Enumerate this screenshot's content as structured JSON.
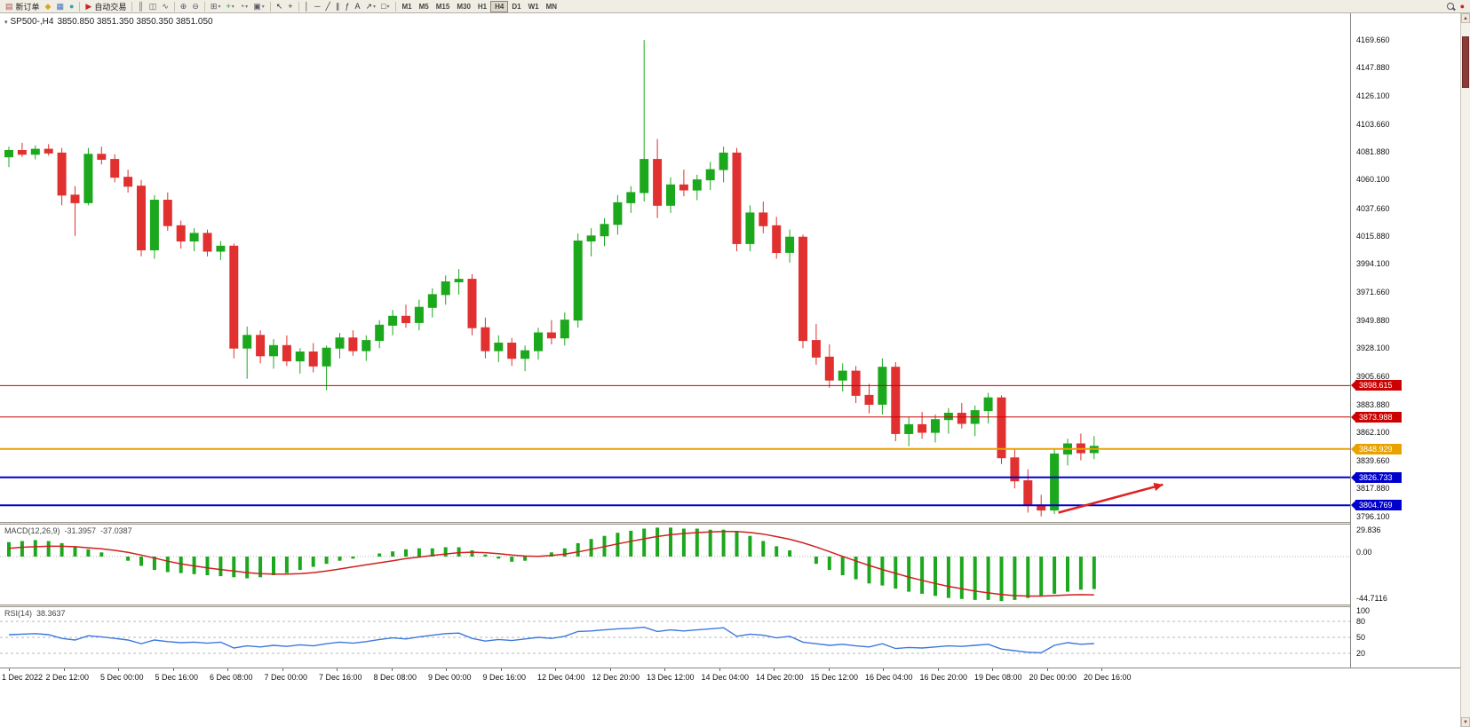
{
  "toolbar": {
    "items": [
      {
        "name": "new-order-button",
        "glyph": "▤",
        "glyph_color": "#b05050",
        "label": "新订单"
      },
      {
        "name": "metaeditor-icon",
        "glyph": "◆",
        "glyph_color": "#d9a520"
      },
      {
        "name": "chart-profiles-icon",
        "glyph": "▦",
        "glyph_color": "#4472c4"
      },
      {
        "name": "mql5-community-icon",
        "glyph": "●",
        "glyph_color": "#2aa8a8"
      },
      {
        "type": "sep"
      },
      {
        "name": "autotrading-button",
        "glyph": "▶",
        "glyph_color": "#cc2222",
        "label": "自动交易"
      },
      {
        "type": "sep"
      },
      {
        "name": "bars-chart-icon",
        "glyph": "║",
        "glyph_color": "#555566"
      },
      {
        "name": "candlestick-chart-icon",
        "glyph": "◫",
        "glyph_color": "#555566"
      },
      {
        "name": "line-chart-icon",
        "glyph": "∿",
        "glyph_color": "#555566"
      },
      {
        "type": "sep"
      },
      {
        "name": "zoom-in-icon",
        "glyph": "⊕",
        "glyph_color": "#555566"
      },
      {
        "name": "zoom-out-icon",
        "glyph": "⊖",
        "glyph_color": "#555566"
      },
      {
        "type": "sep"
      },
      {
        "name": "tile-windows-icon",
        "glyph": "⊞",
        "glyph_color": "#555566",
        "dropdown": true
      },
      {
        "name": "indicators-button",
        "glyph": "+",
        "glyph_color": "#1a9a1a",
        "dropdown": true
      },
      {
        "name": "periods-button",
        "glyph": "◔",
        "glyph_color": "#555566",
        "dropdown": true
      },
      {
        "name": "templates-button",
        "glyph": "▣",
        "glyph_color": "#555566",
        "dropdown": true
      },
      {
        "type": "sep"
      },
      {
        "name": "cursor-icon",
        "glyph": "↖",
        "glyph_color": "#333344"
      },
      {
        "name": "crosshair-icon",
        "glyph": "+",
        "glyph_color": "#333344"
      },
      {
        "type": "sep"
      },
      {
        "name": "vertical-line-icon",
        "glyph": "│",
        "glyph_color": "#333344"
      },
      {
        "name": "horizontal-line-icon",
        "glyph": "─",
        "glyph_color": "#333344"
      },
      {
        "name": "trendline-icon",
        "glyph": "╱",
        "glyph_color": "#333344"
      },
      {
        "name": "equidistant-channel-icon",
        "glyph": "∥",
        "glyph_color": "#333344"
      },
      {
        "name": "fibonacci-icon",
        "glyph": "ƒ",
        "glyph_color": "#333344"
      },
      {
        "name": "text-label-icon",
        "glyph": "A",
        "glyph_color": "#333344"
      },
      {
        "name": "arrows-tool-icon",
        "glyph": "↗",
        "glyph_color": "#333344",
        "dropdown": true
      },
      {
        "name": "shapes-tool-icon",
        "glyph": "□",
        "glyph_color": "#333344",
        "dropdown": true
      },
      {
        "type": "sep"
      },
      {
        "type": "timeframes"
      },
      {
        "type": "spacer"
      },
      {
        "name": "search-icon",
        "special": "mag"
      },
      {
        "name": "alerts-icon",
        "glyph": "●",
        "glyph_color": "#cc2222"
      }
    ],
    "timeframes": {
      "list": [
        "M1",
        "M5",
        "M15",
        "M30",
        "H1",
        "H4",
        "D1",
        "W1",
        "MN"
      ],
      "active": "H4"
    }
  },
  "chart_data": {
    "type": "candlestick",
    "title": {
      "symbol_period": "SP500-,H4",
      "ohlc": "3850.850 3851.350 3850.350 3851.050"
    },
    "colors": {
      "up": "#1CA81C",
      "down": "#E03030",
      "hline_red": "#CC0000",
      "hline_blue": "#0000CC",
      "hline_orange": "#E8A200",
      "macd_histogram": "#1CA81C",
      "macd_signal": "#D02020",
      "rsi_line": "#3C78DC",
      "arrow": "#E02020"
    },
    "price_axis": {
      "labels": [
        "4169.660",
        "4147.880",
        "4126.100",
        "4103.660",
        "4081.880",
        "4060.100",
        "4037.660",
        "4015.880",
        "3994.100",
        "3971.660",
        "3949.880",
        "3928.100",
        "3905.660",
        "3883.880",
        "3862.100",
        "3839.660",
        "3817.880",
        "3796.100"
      ]
    },
    "hlines": [
      {
        "label": "3898.615",
        "value": 3898.615,
        "color": "#CC0000",
        "lw": 1
      },
      {
        "label": "3873.988",
        "value": 3873.988,
        "color": "#CC0000",
        "lw": 1
      },
      {
        "label": "3848.929",
        "value": 3848.929,
        "color": "#E8A200",
        "lw": 2
      },
      {
        "label": "3826.733",
        "value": 3826.733,
        "color": "#0000CC",
        "lw": 2
      },
      {
        "label": "3804.769",
        "value": 3804.769,
        "color": "#0000CC",
        "lw": 2
      }
    ],
    "trend_arrow": {
      "i1": 79.3,
      "p1": 3799,
      "i2": 87.2,
      "p2": 3821
    },
    "candles": [
      [
        4078,
        4086,
        4070,
        4083
      ],
      [
        4083,
        4089,
        4078,
        4080
      ],
      [
        4080,
        4087,
        4076,
        4084
      ],
      [
        4084,
        4088,
        4079,
        4081
      ],
      [
        4081,
        4085,
        4040,
        4048
      ],
      [
        4048,
        4055,
        4016,
        4042
      ],
      [
        4042,
        4085,
        4040,
        4080
      ],
      [
        4080,
        4086,
        4072,
        4076
      ],
      [
        4076,
        4080,
        4058,
        4062
      ],
      [
        4062,
        4068,
        4050,
        4055
      ],
      [
        4055,
        4060,
        4000,
        4005
      ],
      [
        4005,
        4048,
        3998,
        4044
      ],
      [
        4044,
        4050,
        4020,
        4024
      ],
      [
        4024,
        4028,
        4006,
        4012
      ],
      [
        4012,
        4022,
        4004,
        4018
      ],
      [
        4018,
        4021,
        4000,
        4004
      ],
      [
        4004,
        4012,
        3997,
        4008
      ],
      [
        4008,
        4010,
        3920,
        3928
      ],
      [
        3928,
        3945,
        3904,
        3938
      ],
      [
        3938,
        3942,
        3916,
        3922
      ],
      [
        3922,
        3935,
        3912,
        3930
      ],
      [
        3930,
        3938,
        3914,
        3918
      ],
      [
        3918,
        3928,
        3908,
        3925
      ],
      [
        3925,
        3932,
        3909,
        3914
      ],
      [
        3914,
        3930,
        3895,
        3928
      ],
      [
        3928,
        3940,
        3920,
        3936
      ],
      [
        3936,
        3942,
        3922,
        3926
      ],
      [
        3926,
        3938,
        3918,
        3934
      ],
      [
        3934,
        3950,
        3928,
        3946
      ],
      [
        3946,
        3958,
        3938,
        3953
      ],
      [
        3953,
        3962,
        3944,
        3948
      ],
      [
        3948,
        3966,
        3942,
        3960
      ],
      [
        3960,
        3975,
        3952,
        3970
      ],
      [
        3970,
        3985,
        3962,
        3980
      ],
      [
        3980,
        3990,
        3970,
        3982
      ],
      [
        3982,
        3986,
        3938,
        3944
      ],
      [
        3944,
        3952,
        3920,
        3926
      ],
      [
        3926,
        3938,
        3917,
        3932
      ],
      [
        3932,
        3936,
        3914,
        3920
      ],
      [
        3920,
        3930,
        3910,
        3926
      ],
      [
        3926,
        3944,
        3919,
        3940
      ],
      [
        3940,
        3950,
        3931,
        3936
      ],
      [
        3936,
        3956,
        3930,
        3950
      ],
      [
        3950,
        4018,
        3944,
        4012
      ],
      [
        4012,
        4022,
        4000,
        4016
      ],
      [
        4016,
        4030,
        4008,
        4025
      ],
      [
        4025,
        4048,
        4017,
        4042
      ],
      [
        4042,
        4055,
        4034,
        4050
      ],
      [
        4050,
        4169.6,
        4043,
        4076
      ],
      [
        4076,
        4092,
        4030,
        4040
      ],
      [
        4040,
        4062,
        4034,
        4056
      ],
      [
        4056,
        4068,
        4047,
        4052
      ],
      [
        4052,
        4064,
        4044,
        4060
      ],
      [
        4060,
        4074,
        4052,
        4068
      ],
      [
        4068,
        4086,
        4058,
        4081
      ],
      [
        4081,
        4085,
        4004,
        4010
      ],
      [
        4010,
        4040,
        4004,
        4034
      ],
      [
        4034,
        4043,
        4018,
        4024
      ],
      [
        4024,
        4031,
        3998,
        4003
      ],
      [
        4003,
        4021,
        3995,
        4015
      ],
      [
        4015,
        4017,
        3928,
        3934
      ],
      [
        3934,
        3947,
        3915,
        3921
      ],
      [
        3921,
        3931,
        3897,
        3903
      ],
      [
        3903,
        3916,
        3894,
        3910
      ],
      [
        3910,
        3914,
        3885,
        3891
      ],
      [
        3891,
        3900,
        3877,
        3884
      ],
      [
        3884,
        3920,
        3876,
        3913
      ],
      [
        3913,
        3917,
        3855,
        3861
      ],
      [
        3861,
        3874,
        3851,
        3868
      ],
      [
        3868,
        3878,
        3857,
        3862
      ],
      [
        3862,
        3876,
        3854,
        3872
      ],
      [
        3872,
        3881,
        3861,
        3877
      ],
      [
        3877,
        3885,
        3865,
        3869
      ],
      [
        3869,
        3883,
        3859,
        3879
      ],
      [
        3879,
        3893,
        3869,
        3889
      ],
      [
        3889,
        3891,
        3837,
        3842
      ],
      [
        3842,
        3849,
        3818,
        3824
      ],
      [
        3824,
        3833,
        3799,
        3805
      ],
      [
        3805,
        3813,
        3796,
        3801
      ],
      [
        3801,
        3849,
        3798,
        3845
      ],
      [
        3845,
        3857,
        3836,
        3853
      ],
      [
        3853,
        3861,
        3840,
        3846
      ],
      [
        3846,
        3859,
        3841,
        3851
      ]
    ],
    "macd": {
      "name": "MACD(12,26,9)",
      "value": "-31.3957",
      "signal_value": "-37.0387",
      "axis_labels": [
        "29.836",
        "0.00",
        "-44.7116"
      ],
      "histogram": [
        14,
        15,
        16,
        15,
        13,
        10,
        7,
        4,
        0,
        -4,
        -9,
        -13,
        -15,
        -16,
        -17,
        -18,
        -19,
        -20,
        -21,
        -20,
        -18,
        -16,
        -13,
        -10,
        -7,
        -4,
        -2,
        0,
        3,
        5,
        7,
        8,
        8,
        9,
        9,
        6,
        2,
        -2,
        -5,
        -4,
        0,
        4,
        8,
        13,
        17,
        20,
        23,
        25,
        27,
        28,
        28,
        27,
        27,
        26,
        26,
        24,
        20,
        15,
        10,
        6,
        0,
        -7,
        -13,
        -18,
        -22,
        -26,
        -28,
        -31,
        -34,
        -36,
        -38,
        -40,
        -41,
        -42,
        -42,
        -43,
        -42,
        -40,
        -38,
        -36,
        -34,
        -32,
        -31.4
      ],
      "signal": [
        8,
        9,
        9.5,
        10,
        10,
        9.5,
        8.5,
        7.5,
        6,
        4,
        1.5,
        -1.5,
        -4.5,
        -7,
        -9,
        -11,
        -12.5,
        -14,
        -15.5,
        -16.5,
        -17,
        -17,
        -16.5,
        -15.5,
        -14,
        -12,
        -10,
        -8,
        -6,
        -4,
        -2,
        -0.5,
        1,
        2.5,
        3.8,
        4.2,
        3.8,
        2.8,
        1.5,
        0.5,
        0.3,
        1,
        2.4,
        4.5,
        7,
        9.6,
        12.3,
        14.8,
        17.2,
        19.4,
        21.1,
        22.3,
        23.2,
        23.8,
        24.2,
        24.2,
        23.3,
        21.7,
        19.3,
        16.7,
        13.3,
        9.3,
        4.8,
        0.2,
        -4.2,
        -8.6,
        -12.5,
        -16.2,
        -19.8,
        -23,
        -26,
        -28.8,
        -31.2,
        -33.4,
        -35.1,
        -36.7,
        -37.8,
        -38.2,
        -38.2,
        -37.8,
        -37.2,
        -36.8,
        -37.0
      ]
    },
    "rsi": {
      "name": "RSI(14)",
      "value": "38.3637",
      "axis_labels": [
        "100",
        "80",
        "50",
        "20"
      ],
      "levels": [
        80,
        50,
        20
      ],
      "values": [
        55,
        56,
        57,
        55,
        48,
        45,
        53,
        51,
        48,
        45,
        38,
        45,
        42,
        40,
        41,
        39,
        41,
        30,
        34,
        32,
        35,
        33,
        36,
        34,
        38,
        41,
        39,
        42,
        46,
        49,
        47,
        51,
        54,
        57,
        58,
        48,
        43,
        46,
        44,
        47,
        50,
        48,
        52,
        61,
        62,
        64,
        66,
        67,
        69,
        61,
        64,
        62,
        64,
        66,
        68,
        52,
        56,
        54,
        49,
        52,
        41,
        38,
        35,
        37,
        34,
        32,
        38,
        29,
        31,
        30,
        32,
        34,
        33,
        35,
        37,
        28,
        25,
        22,
        21,
        35,
        40,
        37,
        38.36
      ]
    },
    "time_axis": {
      "labels": [
        "1 Dec 2022",
        "2 Dec 12:00",
        "5 Dec 00:00",
        "5 Dec 16:00",
        "6 Dec 08:00",
        "7 Dec 00:00",
        "7 Dec 16:00",
        "8 Dec 08:00",
        "9 Dec 00:00",
        "9 Dec 16:00",
        "12 Dec 04:00",
        "12 Dec 20:00",
        "13 Dec 12:00",
        "14 Dec 04:00",
        "14 Dec 20:00",
        "15 Dec 12:00",
        "16 Dec 04:00",
        "16 Dec 20:00",
        "19 Dec 08:00",
        "20 Dec 00:00",
        "20 Dec 16:00"
      ]
    }
  }
}
